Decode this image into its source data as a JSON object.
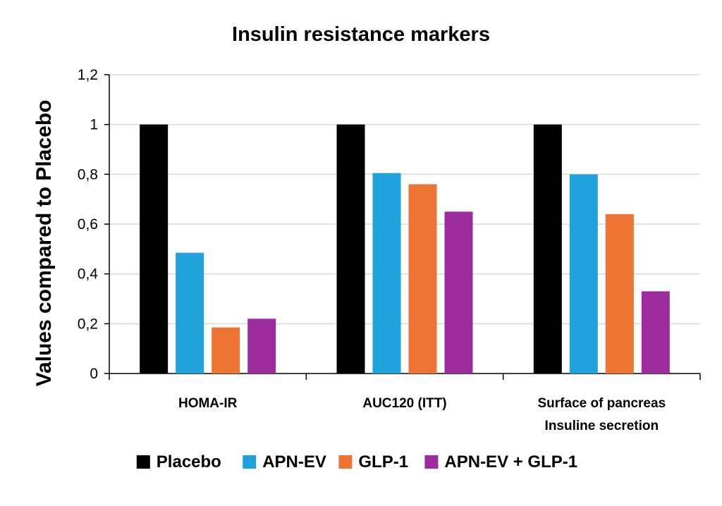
{
  "chart_data": {
    "type": "bar",
    "title": "Insulin resistance markers",
    "xlabel": "",
    "ylabel": "Values compared to Placebo",
    "ylim": [
      0,
      1.2
    ],
    "ytick_values": [
      0,
      0.2,
      0.4,
      0.6,
      0.8,
      1,
      1.2
    ],
    "yticks": [
      "0",
      "0,2",
      "0,4",
      "0,6",
      "0,8",
      "1",
      "1,2"
    ],
    "categories": [
      "HOMA-IR",
      "AUC120 (ITT)",
      "Surface of pancreas\nInsuline secretion"
    ],
    "category_lines": [
      [
        "HOMA-IR"
      ],
      [
        "AUC120 (ITT)"
      ],
      [
        "Surface of pancreas",
        "Insuline secretion"
      ]
    ],
    "grid": true,
    "legend_position": "bottom",
    "series": [
      {
        "name": "Placebo",
        "color": "#000000",
        "values": [
          1.0,
          1.0,
          1.0
        ]
      },
      {
        "name": "APN-EV",
        "color": "#1fa1dc",
        "values": [
          0.485,
          0.805,
          0.8
        ]
      },
      {
        "name": "GLP-1",
        "color": "#ee7433",
        "values": [
          0.185,
          0.76,
          0.64
        ]
      },
      {
        "name": "APN-EV + GLP-1",
        "color": "#9c2b9d",
        "values": [
          0.22,
          0.65,
          0.33
        ]
      }
    ]
  }
}
